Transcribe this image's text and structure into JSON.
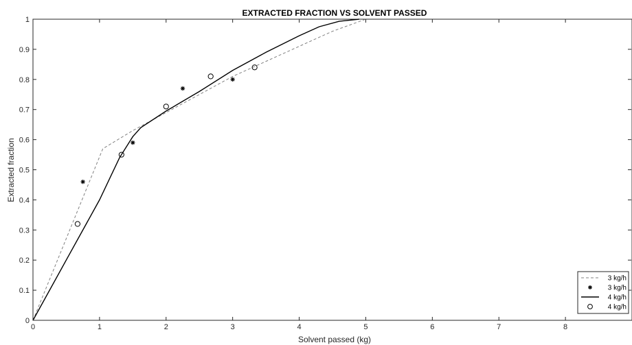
{
  "chart_data": {
    "type": "line",
    "title": "EXTRACTED FRACTION VS SOLVENT PASSED",
    "xlabel": "Solvent passed (kg)",
    "ylabel": "Extracted fraction",
    "xlim": [
      0,
      9
    ],
    "ylim": [
      0,
      1
    ],
    "xticks": [
      0,
      1,
      2,
      3,
      4,
      5,
      6,
      7,
      8
    ],
    "yticks": [
      0,
      0.1,
      0.2,
      0.3,
      0.4,
      0.5,
      0.6,
      0.7,
      0.8,
      0.9,
      1
    ],
    "grid": false,
    "legend_position": "bottom-right",
    "series": [
      {
        "name": "3 kg/h",
        "style": "dashed-line",
        "color": "#808080",
        "points": [
          [
            0,
            0
          ],
          [
            1.05,
            0.57
          ],
          [
            1.5,
            0.63
          ],
          [
            2.0,
            0.69
          ],
          [
            2.5,
            0.75
          ],
          [
            3.0,
            0.81
          ],
          [
            3.5,
            0.86
          ],
          [
            4.0,
            0.91
          ],
          [
            4.5,
            0.96
          ],
          [
            5.0,
            1.0
          ]
        ]
      },
      {
        "name": "3 kg/h",
        "style": "asterisk-markers",
        "color": "#000000",
        "points": [
          [
            0.75,
            0.46
          ],
          [
            1.5,
            0.59
          ],
          [
            2.25,
            0.77
          ],
          [
            3.0,
            0.8
          ]
        ]
      },
      {
        "name": "4 kg/h",
        "style": "solid-line",
        "color": "#000000",
        "points": [
          [
            0,
            0
          ],
          [
            0.5,
            0.2
          ],
          [
            1.0,
            0.4
          ],
          [
            1.3,
            0.54
          ],
          [
            1.5,
            0.61
          ],
          [
            1.62,
            0.64
          ],
          [
            2.0,
            0.695
          ],
          [
            2.5,
            0.76
          ],
          [
            3.0,
            0.83
          ],
          [
            3.5,
            0.89
          ],
          [
            4.0,
            0.945
          ],
          [
            4.3,
            0.975
          ],
          [
            4.6,
            0.993
          ],
          [
            4.9,
            1.0
          ]
        ]
      },
      {
        "name": "4 kg/h",
        "style": "circle-markers",
        "color": "#000000",
        "points": [
          [
            0.67,
            0.32
          ],
          [
            1.33,
            0.55
          ],
          [
            2.0,
            0.71
          ],
          [
            2.67,
            0.81
          ],
          [
            3.33,
            0.84
          ]
        ]
      }
    ]
  }
}
